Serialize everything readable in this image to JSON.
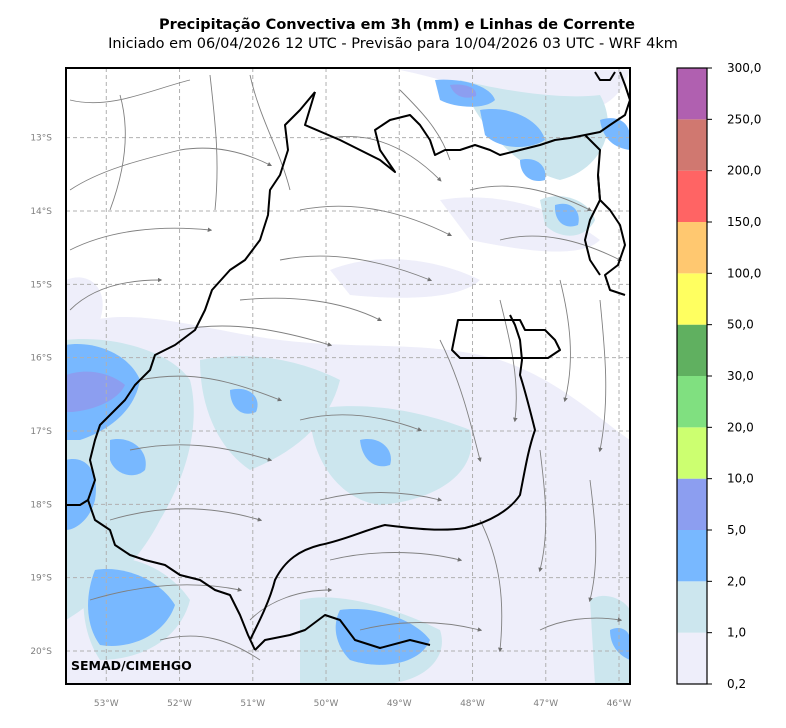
{
  "title": "Precipitação Convectiva em 3h (mm) e Linhas de Corrente",
  "subtitle": "Iniciado em 06/04/2026 12 UTC - Previsão para 10/04/2026 03 UTC - WRF 4km",
  "credit": "SEMAD/CIMEHGO",
  "map": {
    "lon_range": [
      -53.55,
      -45.85
    ],
    "lat_range": [
      -20.45,
      -12.05
    ],
    "lon_ticks": [
      "53°W",
      "52°W",
      "51°W",
      "50°W",
      "49°W",
      "48°W",
      "47°W",
      "46°W"
    ],
    "lat_ticks": [
      "13°S",
      "14°S",
      "15°S",
      "16°S",
      "17°S",
      "18°S",
      "19°S",
      "20°S"
    ],
    "gridlines": true
  },
  "colorbar": {
    "labels": [
      "0,2",
      "1,0",
      "2,0",
      "5,0",
      "10,0",
      "20,0",
      "30,0",
      "50,0",
      "100,0",
      "150,0",
      "200,0",
      "250,0",
      "300,0"
    ],
    "colors": [
      "#eeeefa",
      "#cce6ee",
      "#78b8ff",
      "#8c9ef0",
      "#ccff70",
      "#80e080",
      "#60b060",
      "#ffff60",
      "#ffc870",
      "#ff6464",
      "#d07870",
      "#b060b0"
    ]
  },
  "colors": {
    "border": "#000000",
    "streamline": "#808080",
    "grid": "#b0b0b0"
  }
}
